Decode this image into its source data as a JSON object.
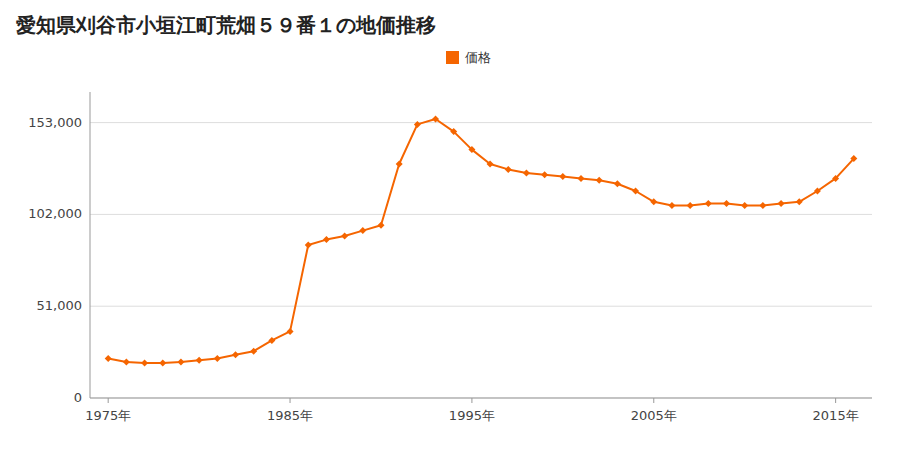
{
  "chart_data": {
    "type": "line",
    "title": "愛知県刈谷市小垣江町荒畑５９番１の地価推移",
    "x": [
      1975,
      1976,
      1977,
      1978,
      1979,
      1980,
      1981,
      1982,
      1983,
      1984,
      1985,
      1986,
      1987,
      1988,
      1989,
      1990,
      1991,
      1992,
      1993,
      1994,
      1995,
      1996,
      1997,
      1998,
      1999,
      2000,
      2001,
      2002,
      2003,
      2004,
      2005,
      2006,
      2007,
      2008,
      2009,
      2010,
      2011,
      2012,
      2013,
      2014,
      2015,
      2016
    ],
    "series": [
      {
        "name": "価格",
        "color": "#f56500",
        "marker": "diamond",
        "values": [
          22000,
          20000,
          19500,
          19500,
          20000,
          21000,
          22000,
          24000,
          26000,
          32000,
          37000,
          85000,
          88000,
          90000,
          93000,
          96000,
          130000,
          152000,
          155000,
          148000,
          138000,
          130000,
          127000,
          125000,
          124000,
          123000,
          122000,
          121000,
          119000,
          115000,
          109000,
          107000,
          107000,
          108000,
          108000,
          107000,
          107000,
          108000,
          109000,
          115000,
          122000,
          133000
        ]
      }
    ],
    "xlim": [
      1974,
      2017
    ],
    "xticks": [
      {
        "value": 1975,
        "label": "1975年"
      },
      {
        "value": 1985,
        "label": "1985年"
      },
      {
        "value": 1995,
        "label": "1995年"
      },
      {
        "value": 2005,
        "label": "2005年"
      },
      {
        "value": 2015,
        "label": "2015年"
      }
    ],
    "ylim": [
      0,
      170000
    ],
    "yticks": [
      0,
      {
        "value": 51000,
        "label": "51,000"
      },
      {
        "value": 102000,
        "label": "102,000"
      },
      {
        "value": 153000,
        "label": "153,000"
      }
    ],
    "grid": true,
    "legend": "top"
  }
}
